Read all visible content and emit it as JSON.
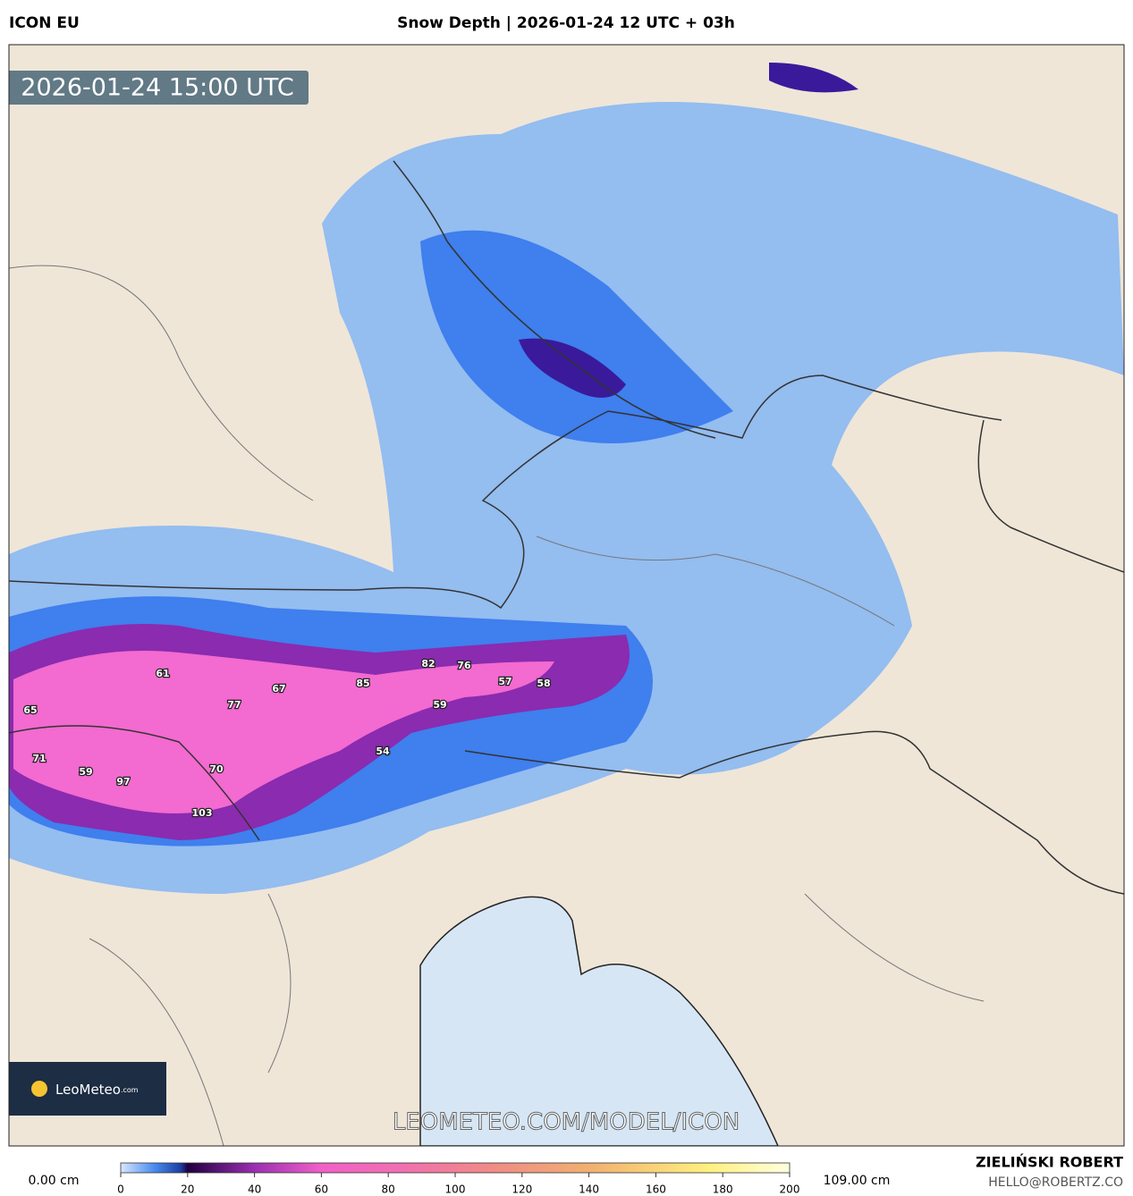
{
  "header": {
    "model": "ICON EU",
    "title": "Snow Depth | 2026-01-24 12 UTC + 03h"
  },
  "map": {
    "timestamp": "2026-01-24 15:00 UTC",
    "watermark": "LEOMETEO.COM/MODEL/ICON",
    "logo": {
      "brand": "LeoMeteo",
      "suffix": ".com"
    },
    "labels": [
      65,
      61,
      77,
      67,
      85,
      82,
      76,
      57,
      58,
      59,
      54,
      71,
      59,
      97,
      70,
      103
    ]
  },
  "legend": {
    "min_label": "0.00 cm",
    "max_label": "109.00 cm",
    "range": [
      0,
      200
    ],
    "ticks": [
      0,
      20,
      40,
      60,
      80,
      100,
      120,
      140,
      160,
      180,
      200
    ]
  },
  "footer": {
    "author": "ZIELIŃSKI ROBERT",
    "email": "HELLO@ROBERTZ.CO"
  }
}
